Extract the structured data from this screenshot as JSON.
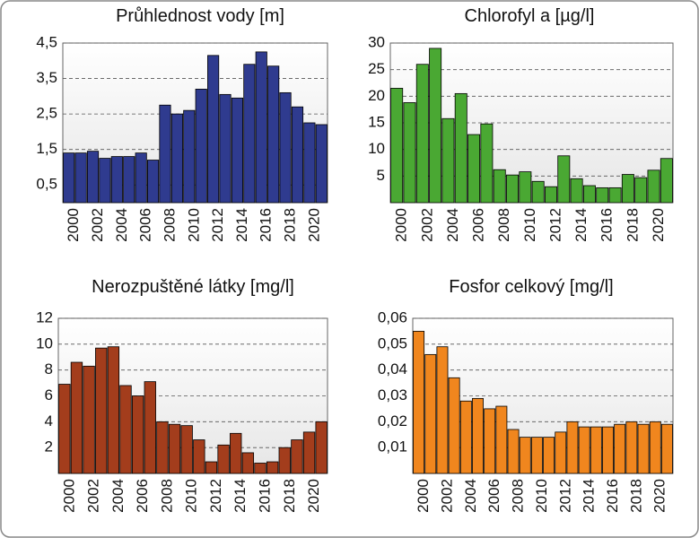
{
  "chart_data": [
    {
      "type": "bar",
      "title": "Průhlednost vody [m]",
      "color": "#2f3b8f",
      "grid": true,
      "categories": [
        "2000",
        null,
        "2002",
        null,
        "2004",
        null,
        "2006",
        null,
        "2008",
        null,
        "2010",
        null,
        "2012",
        null,
        "2014",
        null,
        "2016",
        null,
        "2018",
        null,
        "2020",
        null
      ],
      "values": [
        1.4,
        1.4,
        1.45,
        1.25,
        1.3,
        1.3,
        1.4,
        1.2,
        2.75,
        2.5,
        2.6,
        3.2,
        4.15,
        3.05,
        2.95,
        3.9,
        4.25,
        3.85,
        3.1,
        2.7,
        2.25,
        2.2
      ],
      "ylim": [
        0,
        4.5
      ],
      "yticks": [
        {
          "value": 0.5,
          "label": "0,5"
        },
        {
          "value": 1.5,
          "label": "1,5"
        },
        {
          "value": 2.5,
          "label": "2,5"
        },
        {
          "value": 3.5,
          "label": "3,5"
        },
        {
          "value": 4.5,
          "label": "4,5"
        }
      ]
    },
    {
      "type": "bar",
      "title": "Chlorofyl a [µg/l]",
      "color": "#4aa833",
      "grid": true,
      "categories": [
        "2000",
        null,
        "2002",
        null,
        "2004",
        null,
        "2006",
        null,
        "2008",
        null,
        "2010",
        null,
        "2012",
        null,
        "2014",
        null,
        "2016",
        null,
        "2018",
        null,
        "2020",
        null
      ],
      "values": [
        21.5,
        18.8,
        26,
        29,
        15.8,
        20.5,
        12.8,
        14.8,
        6.2,
        5.2,
        5.8,
        4,
        3,
        8.8,
        4.5,
        3.2,
        2.8,
        2.8,
        5.3,
        4.7,
        6.1,
        8.3
      ],
      "ylim": [
        0,
        30
      ],
      "yticks": [
        5,
        10,
        15,
        20,
        25,
        30
      ]
    },
    {
      "type": "bar",
      "title": "Nerozpuštěné látky [mg/l]",
      "color": "#a33d1c",
      "grid": true,
      "categories": [
        "2000",
        null,
        "2002",
        null,
        "2004",
        null,
        "2006",
        null,
        "2008",
        null,
        "2010",
        null,
        "2012",
        null,
        "2014",
        null,
        "2016",
        null,
        "2018",
        null,
        "2020",
        null
      ],
      "values": [
        6.9,
        8.6,
        8.3,
        9.7,
        9.8,
        6.8,
        6.0,
        7.1,
        4.0,
        3.8,
        3.7,
        2.6,
        0.9,
        2.2,
        3.1,
        1.6,
        0.8,
        0.9,
        2.0,
        2.6,
        3.2,
        4.0
      ],
      "ylim": [
        0,
        12
      ],
      "yticks": [
        2,
        4,
        6,
        8,
        10,
        12
      ]
    },
    {
      "type": "bar",
      "title": "Fosfor celkový [mg/l]",
      "color": "#f0861e",
      "grid": true,
      "categories": [
        "2000",
        null,
        "2002",
        null,
        "2004",
        null,
        "2006",
        null,
        "2008",
        null,
        "2010",
        null,
        "2012",
        null,
        "2014",
        null,
        "2016",
        null,
        "2018",
        null,
        "2020",
        null
      ],
      "values": [
        0.055,
        0.046,
        0.049,
        0.037,
        0.028,
        0.029,
        0.025,
        0.026,
        0.017,
        0.014,
        0.014,
        0.014,
        0.016,
        0.02,
        0.018,
        0.018,
        0.018,
        0.019,
        0.02,
        0.019,
        0.02,
        0.019
      ],
      "ylim": [
        0,
        0.06
      ],
      "yticks": [
        {
          "value": 0.01,
          "label": "0,01"
        },
        {
          "value": 0.02,
          "label": "0,02"
        },
        {
          "value": 0.03,
          "label": "0,03"
        },
        {
          "value": 0.04,
          "label": "0,04"
        },
        {
          "value": 0.05,
          "label": "0,05"
        },
        {
          "value": 0.06,
          "label": "0,06"
        }
      ]
    }
  ]
}
